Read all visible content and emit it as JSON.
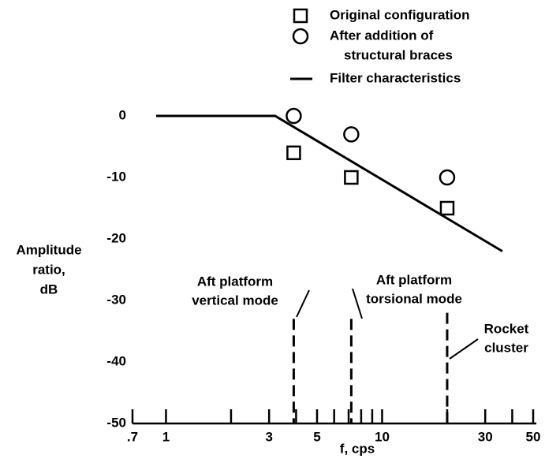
{
  "chart_data": {
    "type": "scatter",
    "xlabel": "f, cps",
    "ylabel": [
      "Amplitude",
      "ratio,",
      "dB"
    ],
    "xscale": "log",
    "xlim": [
      0.7,
      50
    ],
    "xticks": [
      {
        "value": 0.7,
        "label": ".7"
      },
      1,
      3,
      5,
      10,
      30,
      50
    ],
    "xminor": [
      2,
      4,
      6,
      7,
      8,
      9,
      20,
      40
    ],
    "ylim": [
      -50,
      0
    ],
    "yticks": [
      0,
      -10,
      -20,
      -30,
      -40,
      -50
    ],
    "color": "#000000",
    "series": [
      {
        "name": [
          "Original configuration"
        ],
        "marker": "square",
        "x": [
          3.9,
          7.2,
          20
        ],
        "values": [
          -6,
          -10,
          -15
        ]
      },
      {
        "name": [
          "After addition of",
          "structural braces"
        ],
        "marker": "circle",
        "x": [
          3.9,
          7.2,
          20
        ],
        "values": [
          0,
          -3,
          -10
        ]
      },
      {
        "name": [
          "Filter characteristics"
        ],
        "marker": "line",
        "x": [
          0.9,
          3.2,
          36
        ],
        "values": [
          0,
          0,
          -22
        ]
      }
    ],
    "annotations": [
      {
        "text": [
          "Aft platform",
          "vertical mode"
        ],
        "x": 3.9,
        "top": -33
      },
      {
        "text": [
          "Aft platform",
          "torsional mode"
        ],
        "x": 7.2,
        "top": -33
      },
      {
        "text": [
          "Rocket",
          "cluster"
        ],
        "x": 20,
        "top": -32
      }
    ]
  }
}
